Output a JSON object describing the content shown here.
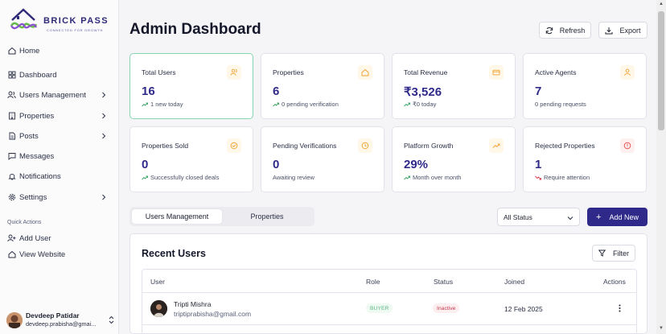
{
  "brand": {
    "name": "BRICK PASS",
    "tagline": "CONNECTED FOR GROWTH"
  },
  "sidebar": {
    "items": [
      {
        "label": "Home",
        "icon": "home-icon"
      },
      {
        "label": "Dashboard",
        "icon": "dashboard-icon"
      },
      {
        "label": "Users Management",
        "icon": "users-icon",
        "expandable": true
      },
      {
        "label": "Properties",
        "icon": "building-icon",
        "expandable": true
      },
      {
        "label": "Posts",
        "icon": "document-icon",
        "expandable": true
      },
      {
        "label": "Messages",
        "icon": "message-icon"
      },
      {
        "label": "Notifications",
        "icon": "bell-icon"
      },
      {
        "label": "Settings",
        "icon": "gear-icon",
        "expandable": true
      }
    ],
    "quick_actions_label": "Quick Actions",
    "quick_actions": [
      {
        "label": "Add User",
        "icon": "user-plus-icon"
      },
      {
        "label": "View Website",
        "icon": "home-icon"
      }
    ],
    "user": {
      "name": "Devdeep Patidar",
      "email": "devdeep.prabisha@gmai..."
    }
  },
  "header": {
    "title": "Admin Dashboard",
    "refresh_label": "Refresh",
    "export_label": "Export"
  },
  "stats": [
    {
      "title": "Total Users",
      "value": "16",
      "sub": "1 new today",
      "trend": "up",
      "icon": "users-icon"
    },
    {
      "title": "Properties",
      "value": "6",
      "sub": "0 pending verification",
      "trend": "up",
      "icon": "home-icon"
    },
    {
      "title": "Total Revenue",
      "value": "₹3,526",
      "sub": "₹0 today",
      "trend": "up",
      "icon": "credit-card-icon"
    },
    {
      "title": "Active Agents",
      "value": "7",
      "sub": "0 pending requests",
      "trend": "none",
      "icon": "user-icon"
    },
    {
      "title": "Properties Sold",
      "value": "0",
      "sub": "Successfully closed deals",
      "trend": "up",
      "icon": "check-circle-icon"
    },
    {
      "title": "Pending Verifications",
      "value": "0",
      "sub": "Awaiting review",
      "trend": "none",
      "icon": "clock-icon"
    },
    {
      "title": "Platform Growth",
      "value": "29%",
      "sub": "Month over month",
      "trend": "up",
      "icon": "trending-up-icon"
    },
    {
      "title": "Rejected Properties",
      "value": "1",
      "sub": "Require attention",
      "trend": "down",
      "icon": "alert-circle-icon"
    }
  ],
  "tabs": [
    {
      "label": "Users Management",
      "selected": true
    },
    {
      "label": "Properties",
      "selected": false
    }
  ],
  "status_filter": {
    "value": "All Status"
  },
  "add_new_label": "Add New",
  "recent_users": {
    "title": "Recent Users",
    "filter_label": "Filter",
    "columns": [
      "User",
      "Role",
      "Status",
      "Joined",
      "Actions"
    ],
    "rows": [
      {
        "name": "Tripti Mishra",
        "email": "triptiprabisha@gmail.com",
        "role": "BUYER",
        "status": "Inactive",
        "joined": "12 Feb 2025"
      }
    ]
  },
  "colors": {
    "accent": "#2f2a8a",
    "active_card_border": "#86d6b0",
    "trend_up": "#3aa565",
    "trend_down": "#d83a4a",
    "icon_orange": "#f0a130",
    "icon_red": "#e24a4a"
  }
}
